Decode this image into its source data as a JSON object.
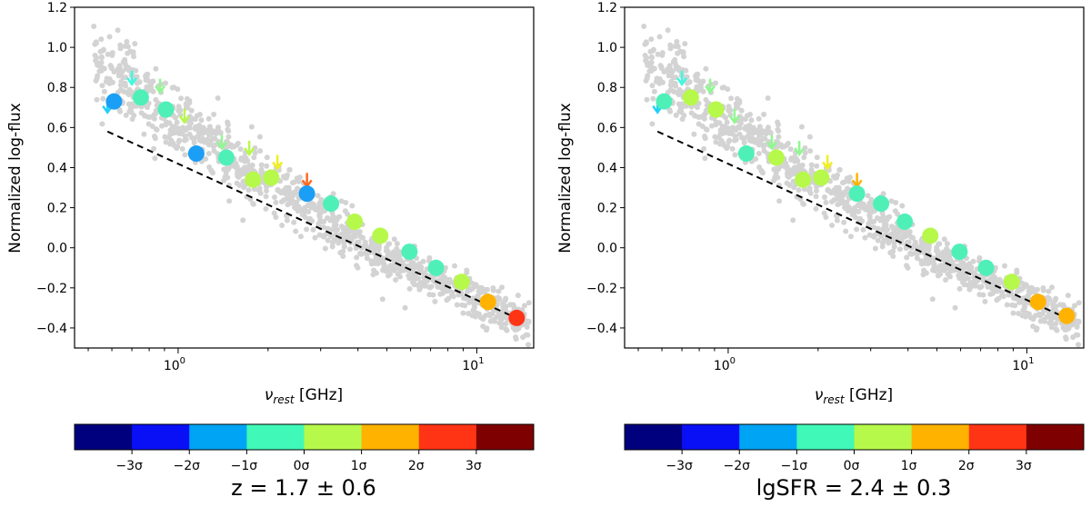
{
  "chart_data": [
    {
      "type": "scatter",
      "title": "",
      "xlabel": "νrest [GHz]",
      "ylabel": "Normalized log-flux",
      "xscale": "log",
      "xlim": [
        0.45,
        15.5
      ],
      "ylim": [
        -0.5,
        1.2
      ],
      "x_ticks": [
        1,
        10
      ],
      "x_tick_labels": [
        "10^0",
        "10^1"
      ],
      "y_ticks": [
        -0.4,
        -0.2,
        0.0,
        0.2,
        0.4,
        0.6,
        0.8,
        1.0,
        1.2
      ],
      "y_tick_labels": [
        "−0.4",
        "−0.2",
        "0.0",
        "0.2",
        "0.4",
        "0.6",
        "0.8",
        "1.0",
        "1.2"
      ],
      "grid": false,
      "fit_line": {
        "style": "dashed",
        "color": "#000000",
        "points": [
          [
            0.58,
            0.58
          ],
          [
            14.0,
            -0.36
          ]
        ]
      },
      "colorbar": {
        "colors": [
          "#00007f",
          "#0a10f5",
          "#00a4f5",
          "#40f8b8",
          "#b6f94a",
          "#ffb300",
          "#ff3415",
          "#7f0000"
        ],
        "tick_labels": [
          "−3σ",
          "−2σ",
          "−1σ",
          "0σ",
          "1σ",
          "2σ",
          "3σ"
        ],
        "label": "z = 1.7 ± 0.6"
      },
      "binned_points": [
        {
          "x": 0.61,
          "y": 0.73,
          "color": "#1b9ef5"
        },
        {
          "x": 0.75,
          "y": 0.75,
          "color": "#4ff0b8"
        },
        {
          "x": 0.91,
          "y": 0.69,
          "color": "#4ff0b8"
        },
        {
          "x": 1.15,
          "y": 0.47,
          "color": "#1b9ef5"
        },
        {
          "x": 1.45,
          "y": 0.45,
          "color": "#4ff0b8"
        },
        {
          "x": 1.78,
          "y": 0.34,
          "color": "#b6f94a"
        },
        {
          "x": 2.05,
          "y": 0.35,
          "color": "#b6f94a"
        },
        {
          "x": 2.7,
          "y": 0.27,
          "color": "#1b9ef5"
        },
        {
          "x": 3.25,
          "y": 0.22,
          "color": "#4ff0b8"
        },
        {
          "x": 3.9,
          "y": 0.13,
          "color": "#b6f94a"
        },
        {
          "x": 4.75,
          "y": 0.06,
          "color": "#b6f94a"
        },
        {
          "x": 5.95,
          "y": -0.02,
          "color": "#4ff0b8"
        },
        {
          "x": 7.3,
          "y": -0.1,
          "color": "#4ff0b8"
        },
        {
          "x": 8.9,
          "y": -0.17,
          "color": "#b6f94a"
        },
        {
          "x": 10.9,
          "y": -0.27,
          "color": "#ffb300"
        },
        {
          "x": 13.6,
          "y": -0.35,
          "color": "#ff3415"
        }
      ],
      "upper_limits": [
        {
          "x": 0.58,
          "y": 0.68,
          "color": "#22d0f8"
        },
        {
          "x": 0.7,
          "y": 0.82,
          "color": "#40f8e0"
        },
        {
          "x": 0.87,
          "y": 0.78,
          "color": "#90f890"
        },
        {
          "x": 1.05,
          "y": 0.63,
          "color": "#b6f94a"
        },
        {
          "x": 1.4,
          "y": 0.5,
          "color": "#90f890"
        },
        {
          "x": 1.73,
          "y": 0.47,
          "color": "#b6f94a"
        },
        {
          "x": 2.15,
          "y": 0.4,
          "color": "#f0f020"
        },
        {
          "x": 2.7,
          "y": 0.31,
          "color": "#ff6a20"
        }
      ]
    },
    {
      "type": "scatter",
      "title": "",
      "xlabel": "νrest [GHz]",
      "ylabel": "Normalized log-flux",
      "xscale": "log",
      "xlim": [
        0.45,
        15.5
      ],
      "ylim": [
        -0.5,
        1.2
      ],
      "x_ticks": [
        1,
        10
      ],
      "x_tick_labels": [
        "10^0",
        "10^1"
      ],
      "y_ticks": [
        -0.4,
        -0.2,
        0.0,
        0.2,
        0.4,
        0.6,
        0.8,
        1.0,
        1.2
      ],
      "y_tick_labels": [
        "−0.4",
        "−0.2",
        "0.0",
        "0.2",
        "0.4",
        "0.6",
        "0.8",
        "1.0",
        "1.2"
      ],
      "grid": false,
      "fit_line": {
        "style": "dashed",
        "color": "#000000",
        "points": [
          [
            0.58,
            0.58
          ],
          [
            14.0,
            -0.36
          ]
        ]
      },
      "colorbar": {
        "colors": [
          "#00007f",
          "#0a10f5",
          "#00a4f5",
          "#40f8b8",
          "#b6f94a",
          "#ffb300",
          "#ff3415",
          "#7f0000"
        ],
        "tick_labels": [
          "−3σ",
          "−2σ",
          "−1σ",
          "0σ",
          "1σ",
          "2σ",
          "3σ"
        ],
        "label": "lgSFR = 2.4 ± 0.3"
      },
      "binned_points": [
        {
          "x": 0.61,
          "y": 0.73,
          "color": "#4ff0b8"
        },
        {
          "x": 0.75,
          "y": 0.75,
          "color": "#b6f94a"
        },
        {
          "x": 0.91,
          "y": 0.69,
          "color": "#b6f94a"
        },
        {
          "x": 1.15,
          "y": 0.47,
          "color": "#4ff0b8"
        },
        {
          "x": 1.45,
          "y": 0.45,
          "color": "#b6f94a"
        },
        {
          "x": 1.78,
          "y": 0.34,
          "color": "#b6f94a"
        },
        {
          "x": 2.05,
          "y": 0.35,
          "color": "#b6f94a"
        },
        {
          "x": 2.7,
          "y": 0.27,
          "color": "#4ff0b8"
        },
        {
          "x": 3.25,
          "y": 0.22,
          "color": "#4ff0b8"
        },
        {
          "x": 3.9,
          "y": 0.13,
          "color": "#4ff0b8"
        },
        {
          "x": 4.75,
          "y": 0.06,
          "color": "#b6f94a"
        },
        {
          "x": 5.95,
          "y": -0.02,
          "color": "#4ff0b8"
        },
        {
          "x": 7.3,
          "y": -0.1,
          "color": "#4ff0b8"
        },
        {
          "x": 8.9,
          "y": -0.17,
          "color": "#b6f94a"
        },
        {
          "x": 10.9,
          "y": -0.27,
          "color": "#ffb300"
        },
        {
          "x": 13.6,
          "y": -0.34,
          "color": "#ffb300"
        }
      ],
      "upper_limits": [
        {
          "x": 0.58,
          "y": 0.68,
          "color": "#22d0f8"
        },
        {
          "x": 0.7,
          "y": 0.82,
          "color": "#40f8e0"
        },
        {
          "x": 0.87,
          "y": 0.78,
          "color": "#90f890"
        },
        {
          "x": 1.05,
          "y": 0.63,
          "color": "#90f890"
        },
        {
          "x": 1.4,
          "y": 0.5,
          "color": "#90f890"
        },
        {
          "x": 1.73,
          "y": 0.47,
          "color": "#90f890"
        },
        {
          "x": 2.15,
          "y": 0.4,
          "color": "#f0f020"
        },
        {
          "x": 2.7,
          "y": 0.31,
          "color": "#ffb300"
        }
      ]
    }
  ]
}
